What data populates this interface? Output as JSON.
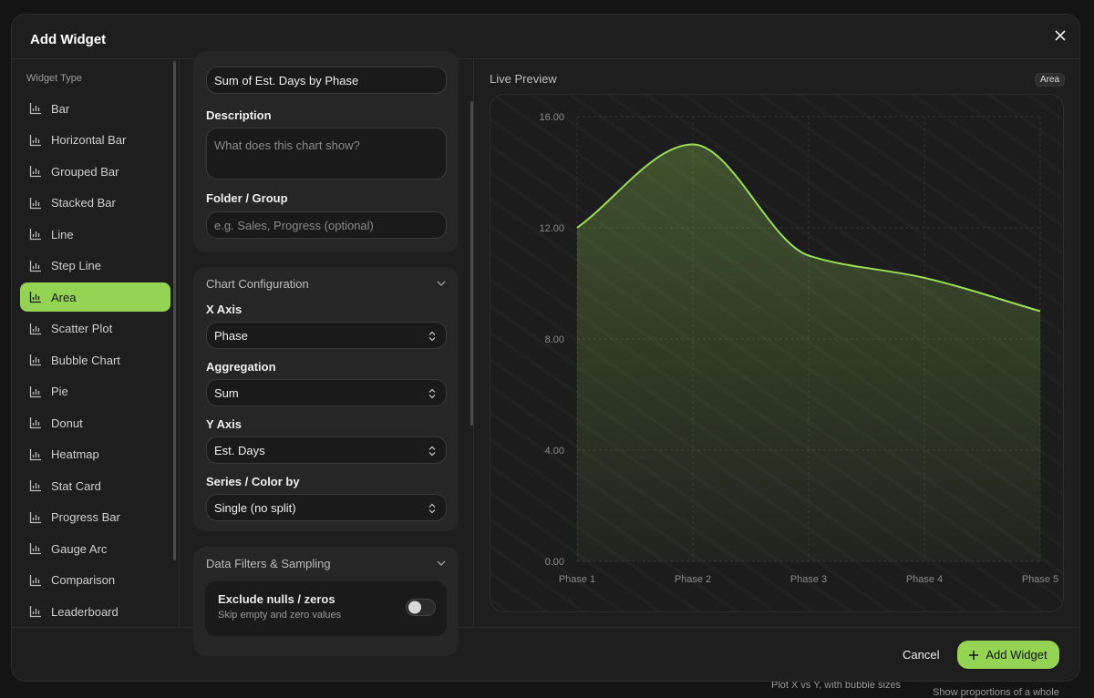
{
  "dialog": {
    "title": "Add Widget",
    "sidebar": {
      "heading": "Widget Type",
      "selected": "Area",
      "items": [
        "Bar",
        "Horizontal Bar",
        "Grouped Bar",
        "Stacked Bar",
        "Line",
        "Step Line",
        "Area",
        "Scatter Plot",
        "Bubble Chart",
        "Pie",
        "Donut",
        "Heatmap",
        "Stat Card",
        "Progress Bar",
        "Gauge Arc",
        "Comparison",
        "Leaderboard"
      ]
    },
    "form": {
      "title_value": "Sum of Est. Days by Phase",
      "description_label": "Description",
      "description_placeholder": "What does this chart show?",
      "folder_label": "Folder / Group",
      "folder_placeholder": "e.g. Sales, Progress (optional)",
      "config_heading": "Chart Configuration",
      "fields": [
        {
          "label": "X Axis",
          "value": "Phase"
        },
        {
          "label": "Aggregation",
          "value": "Sum"
        },
        {
          "label": "Y Axis",
          "value": "Est. Days"
        },
        {
          "label": "Series / Color by",
          "value": "Single (no split)"
        }
      ],
      "filters_heading": "Data Filters & Sampling",
      "toggle_label": "Exclude nulls / zeros",
      "toggle_hint": "Skip empty and zero values"
    },
    "preview": {
      "heading": "Live Preview",
      "badge": "Area"
    },
    "footer": {
      "cancel": "Cancel",
      "confirm": "Add Widget"
    }
  },
  "background": {
    "texts": [
      "Plot X vs Y, with bubble sizes",
      "Show proportions of a whole"
    ]
  },
  "chart_data": {
    "type": "area",
    "categories": [
      "Phase 1",
      "Phase 2",
      "Phase 3",
      "Phase 4",
      "Phase 5"
    ],
    "values": [
      12.0,
      15.0,
      11.0,
      10.2,
      9.0
    ],
    "color": "#9bdc5a",
    "ylim": [
      0,
      16
    ],
    "yticks": [
      {
        "value": 0,
        "label": "0.00"
      },
      {
        "value": 4,
        "label": "4.00"
      },
      {
        "value": 8,
        "label": "8.00"
      },
      {
        "value": 12,
        "label": "12.00"
      },
      {
        "value": 16,
        "label": "16.00"
      }
    ],
    "grid": true
  }
}
